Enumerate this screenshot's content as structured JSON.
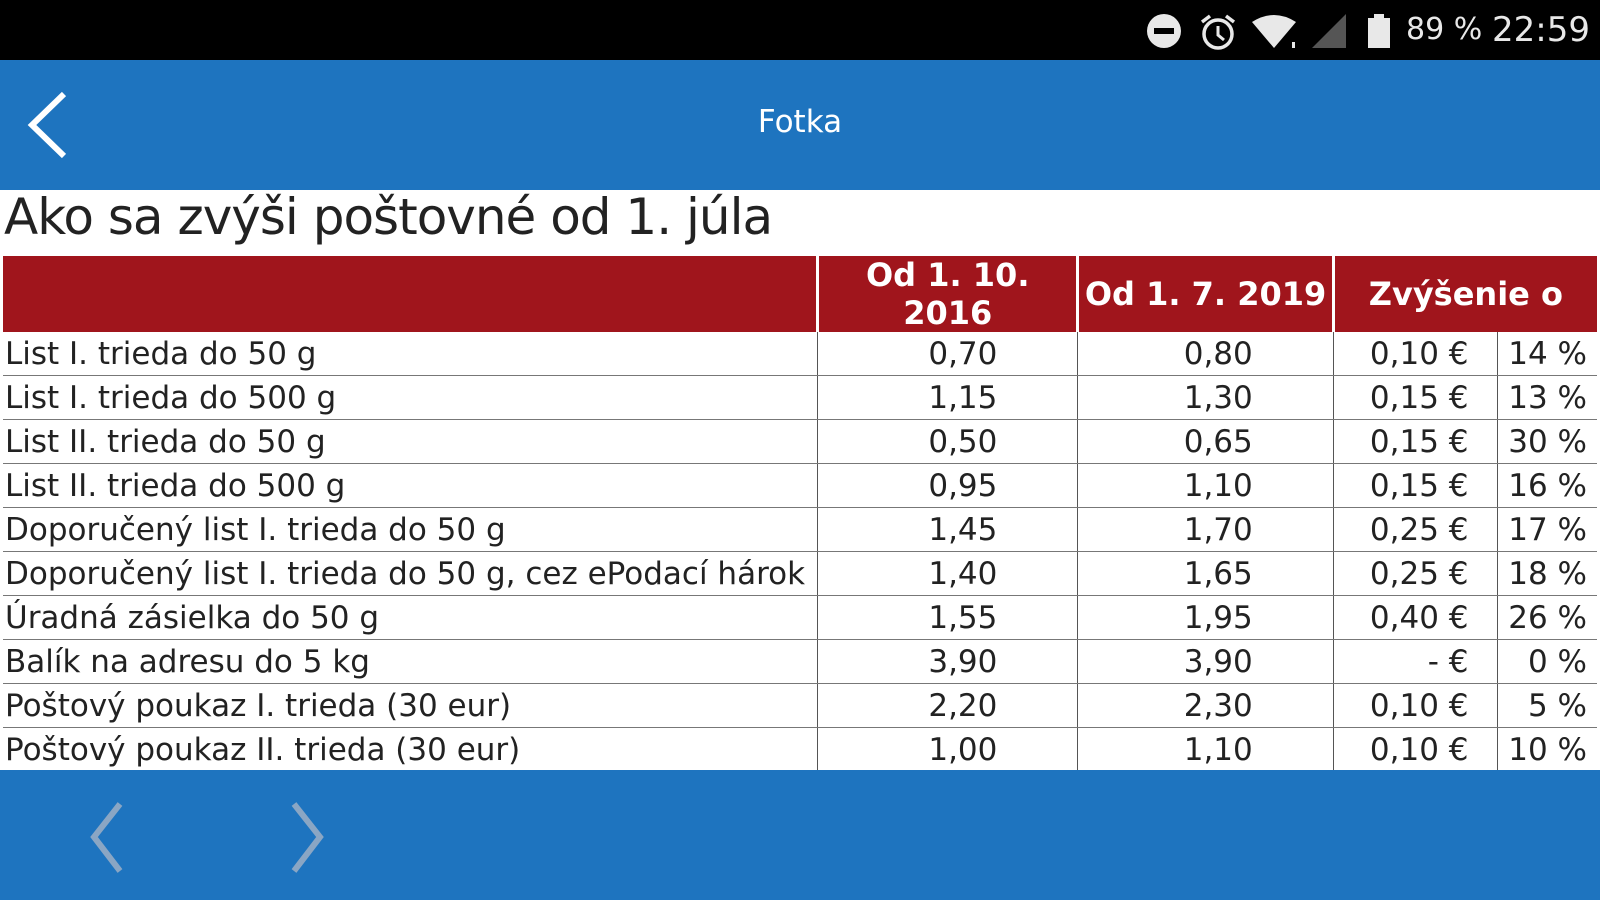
{
  "status_bar": {
    "battery": "89 %",
    "time": "22:59",
    "icons": [
      "do-not-disturb-icon",
      "alarm-icon",
      "wifi-icon",
      "signal-icon",
      "battery-icon"
    ]
  },
  "app_bar": {
    "title": "Fotka",
    "back_icon": "back-arrow-icon"
  },
  "content": {
    "heading": "Ako sa zvýši poštovné od 1. júla",
    "columns": [
      "",
      "Od 1. 10. 2016",
      "Od 1. 7. 2019",
      "Zvýšenie o"
    ],
    "rows": [
      {
        "label": "List I. trieda do 50 g",
        "old": "0,70",
        "new": "0,80",
        "inc": "0,10 €",
        "pct": "14 %"
      },
      {
        "label": "List I. trieda do 500 g",
        "old": "1,15",
        "new": "1,30",
        "inc": "0,15 €",
        "pct": "13 %"
      },
      {
        "label": "List II. trieda do 50 g",
        "old": "0,50",
        "new": "0,65",
        "inc": "0,15 €",
        "pct": "30 %"
      },
      {
        "label": "List II. trieda do 500 g",
        "old": "0,95",
        "new": "1,10",
        "inc": "0,15 €",
        "pct": "16 %"
      },
      {
        "label": "Doporučený list I. trieda do 50 g",
        "old": "1,45",
        "new": "1,70",
        "inc": "0,25 €",
        "pct": "17 %"
      },
      {
        "label": "Doporučený list I. trieda do 50 g, cez ePodací hárok",
        "old": "1,40",
        "new": "1,65",
        "inc": "0,25 €",
        "pct": "18 %"
      },
      {
        "label": "Úradná zásielka do 50 g",
        "old": "1,55",
        "new": "1,95",
        "inc": "0,40 €",
        "pct": "26 %"
      },
      {
        "label": "Balík na adresu do 5 kg",
        "old": "3,90",
        "new": "3,90",
        "inc": "-   €",
        "pct": "0 %"
      },
      {
        "label": "Poštový poukaz I. trieda (30 eur)",
        "old": "2,20",
        "new": "2,30",
        "inc": "0,10 €",
        "pct": "5 %"
      },
      {
        "label": "Poštový poukaz II. trieda (30 eur)",
        "old": "1,00",
        "new": "1,10",
        "inc": "0,10 €",
        "pct": "10 %"
      }
    ]
  },
  "bottom_bar": {
    "icons": [
      "previous-icon",
      "next-icon"
    ]
  },
  "colors": {
    "app_blue": "#1e74bf",
    "header_red": "#a0151c"
  }
}
